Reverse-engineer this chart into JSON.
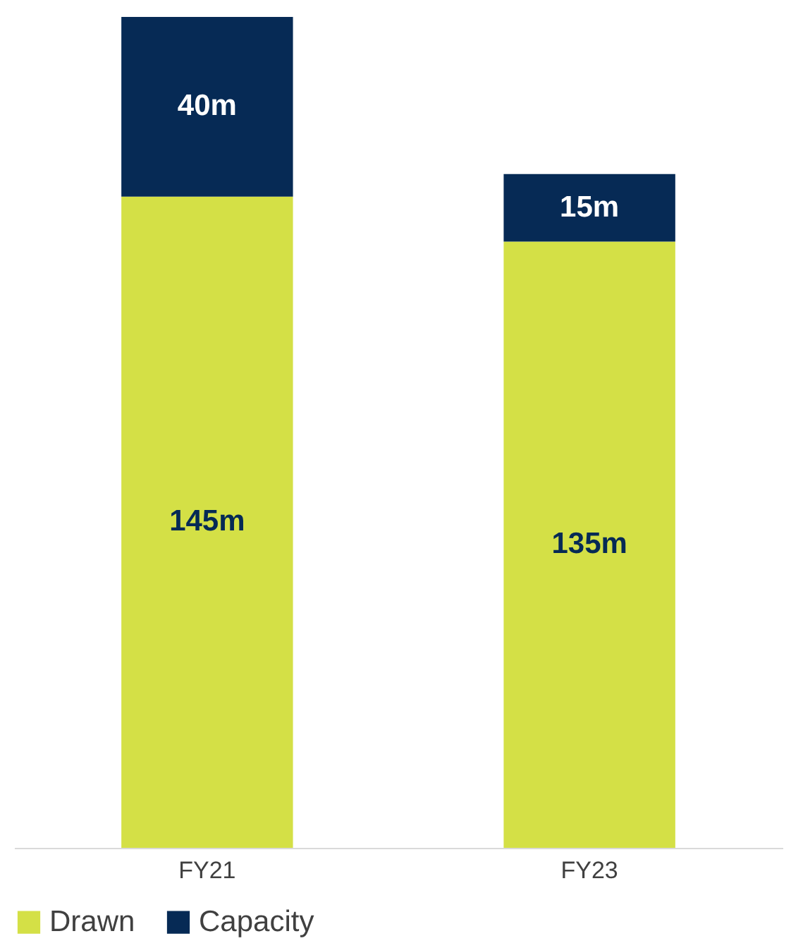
{
  "chart_data": {
    "type": "bar",
    "stacked": true,
    "categories": [
      "FY21",
      "FY23"
    ],
    "legend": "bottom",
    "grid": false,
    "series": [
      {
        "name": "Drawn",
        "color": "#d4e046",
        "values": [
          145,
          135
        ],
        "value_labels": [
          "145m",
          "135m"
        ]
      },
      {
        "name": "Capacity",
        "color": "#062a55",
        "values": [
          40,
          15
        ],
        "value_labels": [
          "40m",
          "15m"
        ]
      }
    ]
  }
}
